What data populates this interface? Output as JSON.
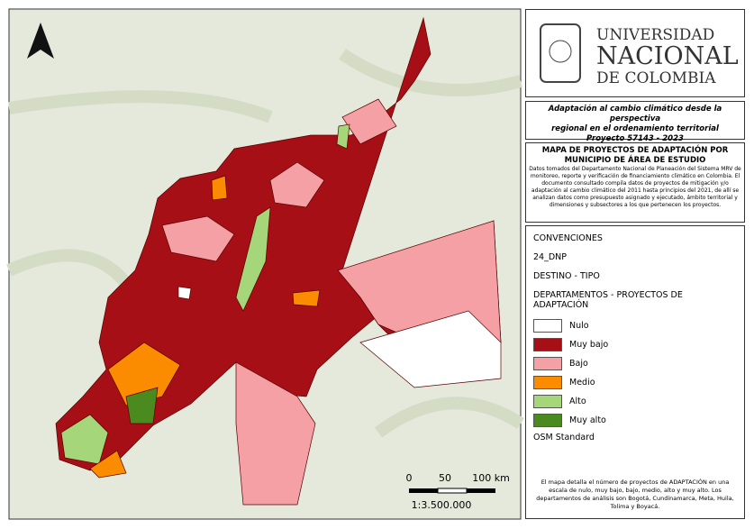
{
  "header": {
    "university": [
      "UNIVERSIDAD",
      "NACIONAL",
      "DE COLOMBIA"
    ]
  },
  "project": {
    "lines": [
      "Adaptación al cambio climático desde la perspectiva",
      "regional en el ordenamiento territorial",
      "Proyecto 57143 - 2023"
    ]
  },
  "map_title": {
    "lines": [
      "MAPA DE PROYECTOS DE ADAPTACIÓN POR",
      "MUNICIPIO DE ÁREA DE ESTUDIO"
    ],
    "description": "Datos tomados del Departamento Nacional de Planeación del Sistema MRV de monitoreo, reporte y verificación de financiamiento climático en Colombia. El documento consultado compila datos de proyectos de mitigación y/o adaptación al cambio climático del 2011 hasta principios del 2021, de allí se analizan datos como presupuesto asignado y ejecutado, ámbito territorial y dimensiones y subsectores a los que pertenecen los proyectos."
  },
  "legend": {
    "title": "CONVENCIONES",
    "layers": [
      "24_DNP",
      "DESTINO - TIPO",
      "DEPARTAMENTOS - PROYECTOS DE ADAPTACIÓN"
    ],
    "items": [
      {
        "label": "Nulo",
        "color": "#ffffff"
      },
      {
        "label": "Muy bajo",
        "color": "#a50f15"
      },
      {
        "label": "Bajo",
        "color": "#f4a0a4"
      },
      {
        "label": "Medio",
        "color": "#fb8c00"
      },
      {
        "label": "Alto",
        "color": "#a5d77a"
      },
      {
        "label": "Muy alto",
        "color": "#4a8a1f"
      }
    ],
    "base_layer": "OSM Standard",
    "note": "El mapa detalla el número de proyectos de ADAPTACIÓN en una escala de nulo, muy bajo, bajo, medio, alto y muy alto. Los departamentos de análisis son Bogotá, Cundinamarca, Meta, Huila, Tolima y Boyacá."
  },
  "scale": {
    "labels": [
      "0",
      "50",
      "100 km"
    ],
    "ratio": "1:3.500.000"
  }
}
